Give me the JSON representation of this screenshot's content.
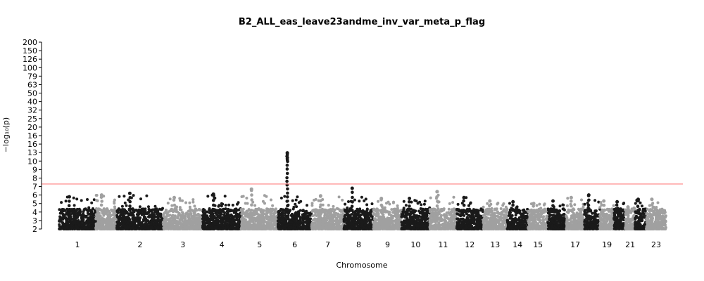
{
  "chart_data": {
    "type": "scatter",
    "title": "B2_ALL_eas_leave23andme_inv_var_meta_p_flag",
    "xlabel": "Chromosome",
    "ylabel": "−log₁₀(p)",
    "y_ticks": [
      "200",
      "150",
      "126",
      "100",
      "79",
      "63",
      "50",
      "40",
      "32",
      "25",
      "20",
      "16",
      "16",
      "13",
      "10",
      "9",
      "8",
      "7",
      "6",
      "5",
      "4",
      "3",
      "2"
    ],
    "y_range": [
      2,
      200
    ],
    "y_scale": "broken: linear 2–16, log above",
    "significance_line": 7.3,
    "significance_color": "#ff8080",
    "colors": [
      "#1a1a1a",
      "#a0a0a0"
    ],
    "chromosomes": [
      {
        "label": "1",
        "peak": 5.8
      },
      {
        "label": "",
        "peak": 6.0
      },
      {
        "label": "2",
        "peak": 6.2
      },
      {
        "label": "3",
        "peak": 5.7
      },
      {
        "label": "4",
        "peak": 6.1
      },
      {
        "label": "5",
        "peak": 6.7
      },
      {
        "label": "6",
        "peak": 12.9
      },
      {
        "label": "7",
        "peak": 5.9
      },
      {
        "label": "8",
        "peak": 6.8
      },
      {
        "label": "9",
        "peak": 5.6
      },
      {
        "label": "10",
        "peak": 5.6
      },
      {
        "label": "11",
        "peak": 6.4
      },
      {
        "label": "12",
        "peak": 5.7
      },
      {
        "label": "13",
        "peak": 5.3
      },
      {
        "label": "14",
        "peak": 5.2
      },
      {
        "label": "15",
        "peak": 5.0
      },
      {
        "label": "",
        "peak": 5.3
      },
      {
        "label": "17",
        "peak": 5.7
      },
      {
        "label": "",
        "peak": 6.0
      },
      {
        "label": "19",
        "peak": 5.3
      },
      {
        "label": "",
        "peak": 5.2
      },
      {
        "label": "21",
        "peak": 4.6
      },
      {
        "label": "",
        "peak": 5.5
      },
      {
        "label": "23",
        "peak": 5.5
      }
    ]
  }
}
